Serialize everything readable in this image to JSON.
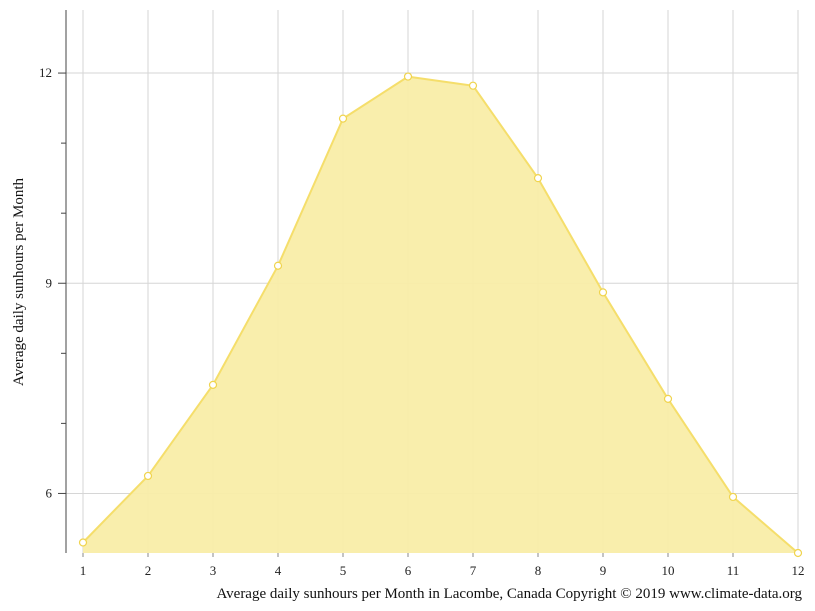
{
  "chart_data": {
    "type": "area",
    "title": "",
    "xlabel": "",
    "ylabel": "Average daily sunhours per Month",
    "caption": "Average daily sunhours per Month in Lacombe, Canada Copyright © 2019 www.climate-data.org",
    "x": [
      1,
      2,
      3,
      4,
      5,
      6,
      7,
      8,
      9,
      10,
      11,
      12
    ],
    "x_tick_labels": [
      "1",
      "2",
      "3",
      "4",
      "5",
      "6",
      "7",
      "8",
      "9",
      "10",
      "11",
      "12"
    ],
    "y_tick_labels": [
      "6",
      "9",
      "12"
    ],
    "y_ticks": [
      6,
      9,
      12
    ],
    "ylim": [
      5.15,
      12.9
    ],
    "grid": true,
    "series": [
      {
        "values": [
          5.3,
          6.25,
          7.55,
          9.25,
          11.35,
          11.95,
          11.82,
          10.5,
          8.87,
          7.35,
          5.95,
          5.15
        ],
        "color": "#f5de6b",
        "fill_color": "#f9eda8"
      }
    ]
  }
}
